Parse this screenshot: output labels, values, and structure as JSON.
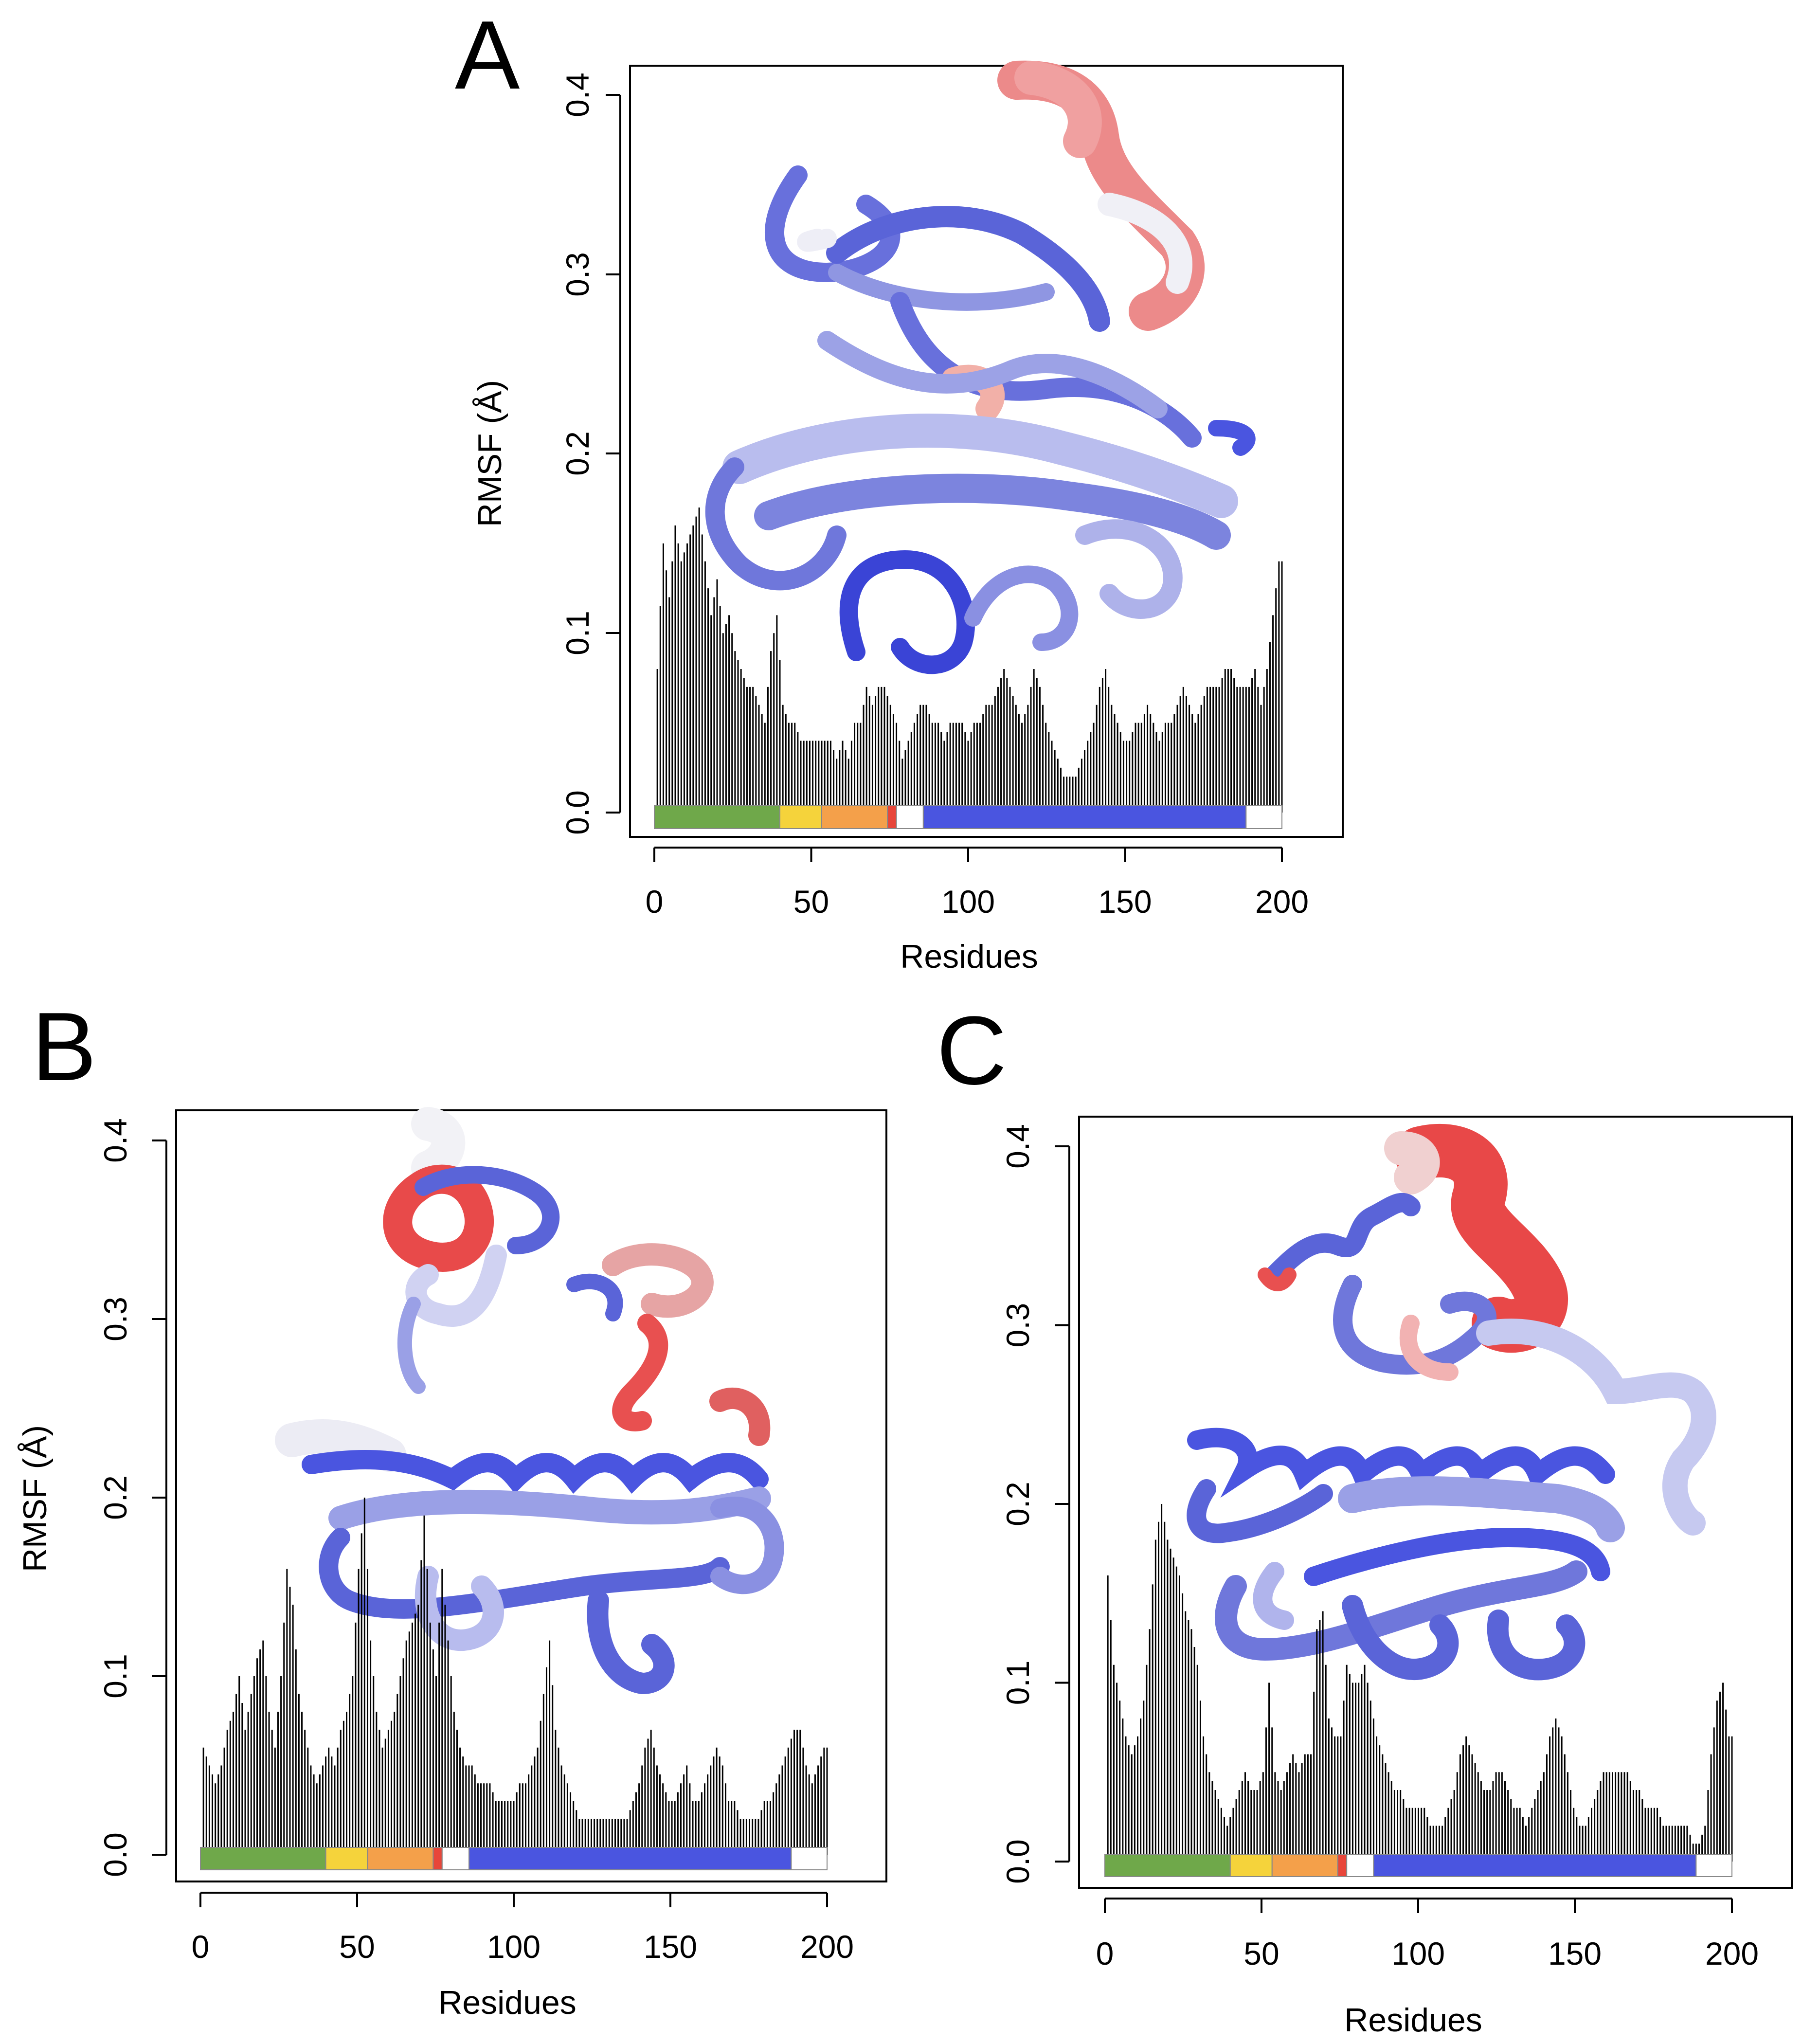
{
  "figure": {
    "panels": [
      {
        "letter": "A",
        "xlabel": "Residues",
        "ylabel": "RMSF (Å)",
        "xticks": [
          "0",
          "50",
          "100",
          "150",
          "200"
        ],
        "yticks": [
          "0.0",
          "0.1",
          "0.2",
          "0.3",
          "0.4"
        ]
      },
      {
        "letter": "B",
        "xlabel": "Residues",
        "ylabel": "RMSF (Å)",
        "xticks": [
          "0",
          "50",
          "100",
          "150",
          "200"
        ],
        "yticks": [
          "0.0",
          "0.1",
          "0.2",
          "0.3",
          "0.4"
        ]
      },
      {
        "letter": "C",
        "xlabel": "Residues",
        "ylabel": "",
        "xticks": [
          "0",
          "50",
          "100",
          "150",
          "200"
        ],
        "yticks": [
          "0.0",
          "0.1",
          "0.2",
          "0.3",
          "0.4"
        ]
      }
    ]
  },
  "colors": {
    "bars": "#000000",
    "domain_green": "#6fa84a",
    "domain_yellow": "#f5d33b",
    "domain_orange": "#f4a04a",
    "domain_red": "#e8463a",
    "domain_blue": "#4a55e0",
    "domain_white": "#ffffff",
    "protein_blue": "#5a64d8",
    "protein_lightblue": "#9aa0e6",
    "protein_white": "#eeeef6",
    "protein_red": "#e85050",
    "protein_pink": "#f0a0a0"
  },
  "chart_data": [
    {
      "type": "bar",
      "panel": "A",
      "xlabel": "Residues",
      "ylabel": "RMSF (Å)",
      "xlim": [
        0,
        210
      ],
      "ylim": [
        0,
        0.4
      ],
      "profile": [
        [
          1,
          0.08
        ],
        [
          3,
          0.15
        ],
        [
          5,
          0.12
        ],
        [
          7,
          0.16
        ],
        [
          9,
          0.14
        ],
        [
          11,
          0.15
        ],
        [
          13,
          0.16
        ],
        [
          15,
          0.17
        ],
        [
          17,
          0.14
        ],
        [
          19,
          0.11
        ],
        [
          21,
          0.13
        ],
        [
          23,
          0.1
        ],
        [
          25,
          0.11
        ],
        [
          27,
          0.09
        ],
        [
          29,
          0.08
        ],
        [
          31,
          0.07
        ],
        [
          33,
          0.07
        ],
        [
          35,
          0.06
        ],
        [
          37,
          0.05
        ],
        [
          39,
          0.09
        ],
        [
          41,
          0.11
        ],
        [
          43,
          0.06
        ],
        [
          45,
          0.05
        ],
        [
          47,
          0.05
        ],
        [
          49,
          0.04
        ],
        [
          51,
          0.04
        ],
        [
          53,
          0.04
        ],
        [
          55,
          0.04
        ],
        [
          57,
          0.04
        ],
        [
          59,
          0.04
        ],
        [
          61,
          0.03
        ],
        [
          63,
          0.04
        ],
        [
          65,
          0.03
        ],
        [
          67,
          0.05
        ],
        [
          69,
          0.05
        ],
        [
          71,
          0.07
        ],
        [
          73,
          0.06
        ],
        [
          75,
          0.07
        ],
        [
          77,
          0.07
        ],
        [
          79,
          0.06
        ],
        [
          81,
          0.05
        ],
        [
          83,
          0.03
        ],
        [
          85,
          0.04
        ],
        [
          87,
          0.05
        ],
        [
          89,
          0.06
        ],
        [
          91,
          0.06
        ],
        [
          93,
          0.05
        ],
        [
          95,
          0.05
        ],
        [
          97,
          0.04
        ],
        [
          99,
          0.05
        ],
        [
          101,
          0.05
        ],
        [
          103,
          0.05
        ],
        [
          105,
          0.04
        ],
        [
          107,
          0.05
        ],
        [
          109,
          0.05
        ],
        [
          111,
          0.06
        ],
        [
          113,
          0.06
        ],
        [
          115,
          0.07
        ],
        [
          117,
          0.08
        ],
        [
          119,
          0.07
        ],
        [
          121,
          0.06
        ],
        [
          123,
          0.05
        ],
        [
          125,
          0.06
        ],
        [
          127,
          0.08
        ],
        [
          129,
          0.07
        ],
        [
          131,
          0.05
        ],
        [
          133,
          0.04
        ],
        [
          135,
          0.03
        ],
        [
          137,
          0.02
        ],
        [
          139,
          0.02
        ],
        [
          141,
          0.02
        ],
        [
          143,
          0.03
        ],
        [
          145,
          0.04
        ],
        [
          147,
          0.05
        ],
        [
          149,
          0.07
        ],
        [
          151,
          0.08
        ],
        [
          153,
          0.06
        ],
        [
          155,
          0.05
        ],
        [
          157,
          0.04
        ],
        [
          159,
          0.04
        ],
        [
          161,
          0.05
        ],
        [
          163,
          0.05
        ],
        [
          165,
          0.06
        ],
        [
          167,
          0.05
        ],
        [
          169,
          0.04
        ],
        [
          171,
          0.05
        ],
        [
          173,
          0.05
        ],
        [
          175,
          0.06
        ],
        [
          177,
          0.07
        ],
        [
          179,
          0.06
        ],
        [
          181,
          0.05
        ],
        [
          183,
          0.06
        ],
        [
          185,
          0.07
        ],
        [
          187,
          0.07
        ],
        [
          189,
          0.07
        ],
        [
          191,
          0.08
        ],
        [
          193,
          0.08
        ],
        [
          195,
          0.07
        ],
        [
          197,
          0.07
        ],
        [
          199,
          0.07
        ],
        [
          201,
          0.08
        ],
        [
          203,
          0.06
        ],
        [
          205,
          0.08
        ],
        [
          207,
          0.11
        ],
        [
          209,
          0.14
        ]
      ],
      "domains": [
        {
          "from": 0,
          "to": 42,
          "color": "green"
        },
        {
          "from": 42,
          "to": 56,
          "color": "yellow"
        },
        {
          "from": 56,
          "to": 78,
          "color": "orange"
        },
        {
          "from": 78,
          "to": 81,
          "color": "red"
        },
        {
          "from": 81,
          "to": 90,
          "color": "white"
        },
        {
          "from": 90,
          "to": 198,
          "color": "blue"
        },
        {
          "from": 198,
          "to": 210,
          "color": "white"
        }
      ]
    },
    {
      "type": "bar",
      "panel": "B",
      "xlabel": "Residues",
      "ylabel": "RMSF (Å)",
      "xlim": [
        0,
        210
      ],
      "ylim": [
        0,
        0.4
      ],
      "profile": [
        [
          1,
          0.06
        ],
        [
          3,
          0.05
        ],
        [
          5,
          0.04
        ],
        [
          7,
          0.05
        ],
        [
          9,
          0.07
        ],
        [
          11,
          0.08
        ],
        [
          13,
          0.1
        ],
        [
          15,
          0.07
        ],
        [
          17,
          0.09
        ],
        [
          19,
          0.11
        ],
        [
          21,
          0.12
        ],
        [
          23,
          0.08
        ],
        [
          25,
          0.06
        ],
        [
          27,
          0.1
        ],
        [
          29,
          0.16
        ],
        [
          31,
          0.14
        ],
        [
          33,
          0.09
        ],
        [
          35,
          0.07
        ],
        [
          37,
          0.05
        ],
        [
          39,
          0.04
        ],
        [
          41,
          0.05
        ],
        [
          43,
          0.06
        ],
        [
          45,
          0.05
        ],
        [
          47,
          0.07
        ],
        [
          49,
          0.08
        ],
        [
          51,
          0.1
        ],
        [
          53,
          0.16
        ],
        [
          55,
          0.2
        ],
        [
          57,
          0.12
        ],
        [
          59,
          0.08
        ],
        [
          61,
          0.06
        ],
        [
          63,
          0.07
        ],
        [
          65,
          0.08
        ],
        [
          67,
          0.1
        ],
        [
          69,
          0.12
        ],
        [
          71,
          0.13
        ],
        [
          73,
          0.14
        ],
        [
          75,
          0.19
        ],
        [
          77,
          0.13
        ],
        [
          79,
          0.1
        ],
        [
          81,
          0.16
        ],
        [
          83,
          0.12
        ],
        [
          85,
          0.08
        ],
        [
          87,
          0.06
        ],
        [
          89,
          0.05
        ],
        [
          91,
          0.05
        ],
        [
          93,
          0.04
        ],
        [
          95,
          0.04
        ],
        [
          97,
          0.04
        ],
        [
          99,
          0.03
        ],
        [
          101,
          0.03
        ],
        [
          103,
          0.03
        ],
        [
          105,
          0.03
        ],
        [
          107,
          0.04
        ],
        [
          109,
          0.04
        ],
        [
          111,
          0.05
        ],
        [
          113,
          0.06
        ],
        [
          115,
          0.09
        ],
        [
          117,
          0.12
        ],
        [
          119,
          0.07
        ],
        [
          121,
          0.05
        ],
        [
          123,
          0.04
        ],
        [
          125,
          0.03
        ],
        [
          127,
          0.02
        ],
        [
          129,
          0.02
        ],
        [
          131,
          0.02
        ],
        [
          133,
          0.02
        ],
        [
          135,
          0.02
        ],
        [
          137,
          0.02
        ],
        [
          139,
          0.02
        ],
        [
          141,
          0.02
        ],
        [
          143,
          0.02
        ],
        [
          145,
          0.03
        ],
        [
          147,
          0.04
        ],
        [
          149,
          0.06
        ],
        [
          151,
          0.07
        ],
        [
          153,
          0.05
        ],
        [
          155,
          0.04
        ],
        [
          157,
          0.03
        ],
        [
          159,
          0.03
        ],
        [
          161,
          0.04
        ],
        [
          163,
          0.05
        ],
        [
          165,
          0.03
        ],
        [
          167,
          0.03
        ],
        [
          169,
          0.04
        ],
        [
          171,
          0.05
        ],
        [
          173,
          0.06
        ],
        [
          175,
          0.05
        ],
        [
          177,
          0.03
        ],
        [
          179,
          0.03
        ],
        [
          181,
          0.02
        ],
        [
          183,
          0.02
        ],
        [
          185,
          0.02
        ],
        [
          187,
          0.02
        ],
        [
          189,
          0.03
        ],
        [
          191,
          0.03
        ],
        [
          193,
          0.04
        ],
        [
          195,
          0.05
        ],
        [
          197,
          0.06
        ],
        [
          199,
          0.07
        ],
        [
          201,
          0.07
        ],
        [
          203,
          0.05
        ],
        [
          205,
          0.04
        ],
        [
          207,
          0.05
        ],
        [
          209,
          0.06
        ]
      ],
      "domains": [
        {
          "from": 0,
          "to": 42,
          "color": "green"
        },
        {
          "from": 42,
          "to": 56,
          "color": "yellow"
        },
        {
          "from": 56,
          "to": 78,
          "color": "orange"
        },
        {
          "from": 78,
          "to": 81,
          "color": "red"
        },
        {
          "from": 81,
          "to": 90,
          "color": "white"
        },
        {
          "from": 90,
          "to": 198,
          "color": "blue"
        },
        {
          "from": 198,
          "to": 210,
          "color": "white"
        }
      ]
    },
    {
      "type": "bar",
      "panel": "C",
      "xlabel": "Residues",
      "ylabel": "",
      "xlim": [
        0,
        210
      ],
      "ylim": [
        0,
        0.4
      ],
      "profile": [
        [
          1,
          0.16
        ],
        [
          3,
          0.11
        ],
        [
          5,
          0.09
        ],
        [
          7,
          0.07
        ],
        [
          9,
          0.06
        ],
        [
          11,
          0.07
        ],
        [
          13,
          0.09
        ],
        [
          15,
          0.13
        ],
        [
          17,
          0.18
        ],
        [
          19,
          0.2
        ],
        [
          21,
          0.18
        ],
        [
          23,
          0.17
        ],
        [
          25,
          0.16
        ],
        [
          27,
          0.14
        ],
        [
          29,
          0.13
        ],
        [
          31,
          0.11
        ],
        [
          33,
          0.07
        ],
        [
          35,
          0.05
        ],
        [
          37,
          0.04
        ],
        [
          39,
          0.03
        ],
        [
          41,
          0.02
        ],
        [
          43,
          0.03
        ],
        [
          45,
          0.04
        ],
        [
          47,
          0.05
        ],
        [
          49,
          0.04
        ],
        [
          51,
          0.04
        ],
        [
          53,
          0.05
        ],
        [
          55,
          0.1
        ],
        [
          57,
          0.05
        ],
        [
          59,
          0.04
        ],
        [
          61,
          0.05
        ],
        [
          63,
          0.06
        ],
        [
          65,
          0.05
        ],
        [
          67,
          0.06
        ],
        [
          69,
          0.06
        ],
        [
          71,
          0.13
        ],
        [
          73,
          0.14
        ],
        [
          75,
          0.08
        ],
        [
          77,
          0.07
        ],
        [
          79,
          0.07
        ],
        [
          81,
          0.11
        ],
        [
          83,
          0.1
        ],
        [
          85,
          0.1
        ],
        [
          87,
          0.11
        ],
        [
          89,
          0.09
        ],
        [
          91,
          0.07
        ],
        [
          93,
          0.06
        ],
        [
          95,
          0.05
        ],
        [
          97,
          0.04
        ],
        [
          99,
          0.04
        ],
        [
          101,
          0.03
        ],
        [
          103,
          0.03
        ],
        [
          105,
          0.03
        ],
        [
          107,
          0.03
        ],
        [
          109,
          0.02
        ],
        [
          111,
          0.02
        ],
        [
          113,
          0.02
        ],
        [
          115,
          0.03
        ],
        [
          117,
          0.04
        ],
        [
          119,
          0.06
        ],
        [
          121,
          0.07
        ],
        [
          123,
          0.06
        ],
        [
          125,
          0.05
        ],
        [
          127,
          0.04
        ],
        [
          129,
          0.04
        ],
        [
          131,
          0.05
        ],
        [
          133,
          0.05
        ],
        [
          135,
          0.04
        ],
        [
          137,
          0.03
        ],
        [
          139,
          0.03
        ],
        [
          141,
          0.02
        ],
        [
          143,
          0.03
        ],
        [
          145,
          0.04
        ],
        [
          147,
          0.05
        ],
        [
          149,
          0.07
        ],
        [
          151,
          0.08
        ],
        [
          153,
          0.07
        ],
        [
          155,
          0.05
        ],
        [
          157,
          0.03
        ],
        [
          159,
          0.02
        ],
        [
          161,
          0.02
        ],
        [
          163,
          0.03
        ],
        [
          165,
          0.04
        ],
        [
          167,
          0.05
        ],
        [
          169,
          0.05
        ],
        [
          171,
          0.05
        ],
        [
          173,
          0.05
        ],
        [
          175,
          0.05
        ],
        [
          177,
          0.04
        ],
        [
          179,
          0.04
        ],
        [
          181,
          0.03
        ],
        [
          183,
          0.03
        ],
        [
          185,
          0.03
        ],
        [
          187,
          0.02
        ],
        [
          189,
          0.02
        ],
        [
          191,
          0.02
        ],
        [
          193,
          0.02
        ],
        [
          195,
          0.02
        ],
        [
          197,
          0.01
        ],
        [
          199,
          0.01
        ],
        [
          201,
          0.02
        ],
        [
          203,
          0.06
        ],
        [
          205,
          0.09
        ],
        [
          207,
          0.1
        ],
        [
          209,
          0.07
        ]
      ],
      "domains": [
        {
          "from": 0,
          "to": 42,
          "color": "green"
        },
        {
          "from": 42,
          "to": 56,
          "color": "yellow"
        },
        {
          "from": 56,
          "to": 78,
          "color": "orange"
        },
        {
          "from": 78,
          "to": 81,
          "color": "red"
        },
        {
          "from": 81,
          "to": 90,
          "color": "white"
        },
        {
          "from": 90,
          "to": 198,
          "color": "blue"
        },
        {
          "from": 198,
          "to": 210,
          "color": "white"
        }
      ]
    }
  ]
}
